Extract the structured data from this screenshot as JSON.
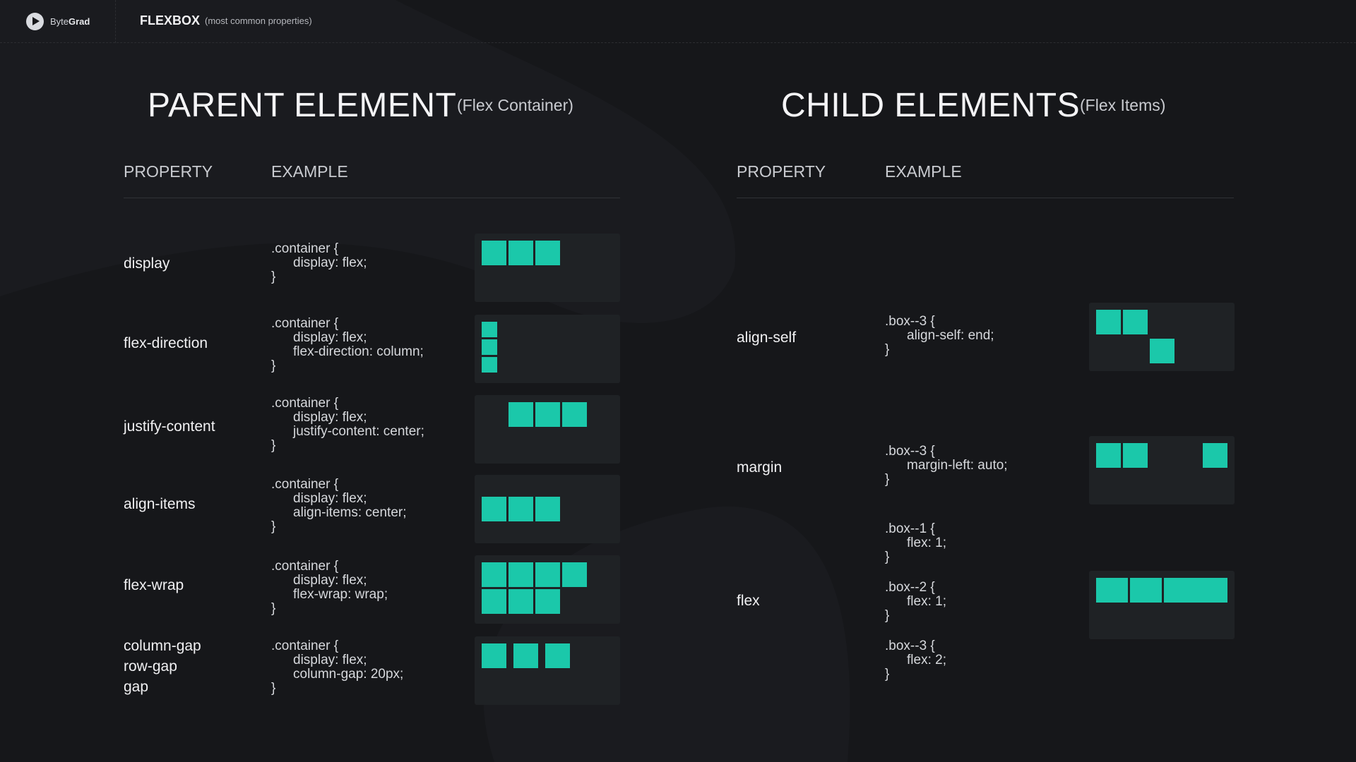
{
  "header": {
    "brand_light": "Byte",
    "brand_bold": "Grad",
    "title": "FLEXBOX",
    "subtitle": "(most common properties)"
  },
  "colors": {
    "background": "#16171a",
    "panel": "#1f2225",
    "accent": "#1bc8aa"
  },
  "parent": {
    "title": "PARENT ELEMENT",
    "subtitle": "(Flex Container)",
    "col_property": "PROPERTY",
    "col_example": "EXAMPLE",
    "rows": [
      {
        "property": "display",
        "code": [
          ".container {",
          "display: flex;",
          "}"
        ]
      },
      {
        "property": "flex-direction",
        "code": [
          ".container {",
          "display: flex;",
          "flex-direction: column;",
          "}"
        ]
      },
      {
        "property": "justify-content",
        "code": [
          ".container {",
          "display: flex;",
          "justify-content: center;",
          "}"
        ]
      },
      {
        "property": "align-items",
        "code": [
          ".container {",
          "display: flex;",
          "align-items: center;",
          "}"
        ]
      },
      {
        "property": "flex-wrap",
        "code": [
          ".container {",
          "display: flex;",
          "flex-wrap: wrap;",
          "}"
        ]
      },
      {
        "property": [
          "column-gap",
          "row-gap",
          "gap"
        ],
        "code": [
          ".container {",
          "display: flex;",
          "column-gap: 20px;",
          "}"
        ]
      }
    ]
  },
  "child": {
    "title": "CHILD ELEMENTS",
    "subtitle": "(Flex Items)",
    "col_property": "PROPERTY",
    "col_example": "EXAMPLE",
    "rows": [
      {
        "property": "align-self",
        "code": [
          ".box--3 {",
          "align-self: end;",
          "}"
        ]
      },
      {
        "property": "margin",
        "code": [
          ".box--3 {",
          "margin-left: auto;",
          "}"
        ]
      },
      {
        "property": "flex",
        "code": [
          [
            ".box--1 {",
            "flex: 1;",
            "}"
          ],
          [
            ".box--2 {",
            "flex: 1;",
            "}"
          ],
          [
            ".box--3 {",
            "flex: 2;",
            "}"
          ]
        ]
      }
    ]
  }
}
